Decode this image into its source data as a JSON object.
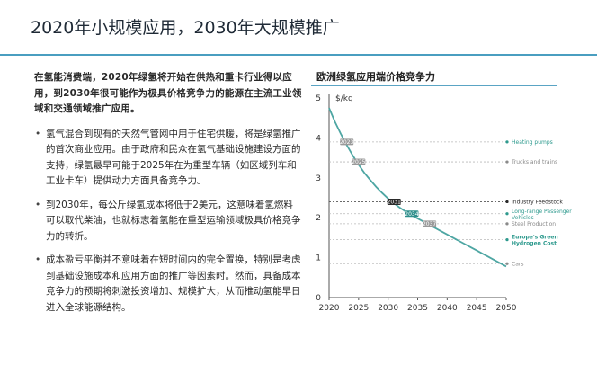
{
  "page": {
    "title": "2020年小规模应用，2030年大规模推广"
  },
  "text": {
    "lead": "在氢能消费端，2020年绿氢将开始在供热和重卡行业得以应用，到2030年很可能作为极具价格竞争力的能源在主流工业领域和交通领域推广应用。",
    "bullets": [
      "氢气混合到现有的天然气管网中用于住宅供暖，将是绿氢推广的首次商业应用。由于政府和民众在氢气基础设施建设方面的支持，绿氢最早可能于2025年在为重型车辆（如区域列车和工业卡车）提供动力方面具备竞争力。",
      "到2030年，每公斤绿氢成本将低于2美元，这意味着氢燃料可以取代柴油，也就标志着氢能在重型运输领域极具价格竞争力的转折。",
      "成本盈亏平衡并不意味着在短时间内的完全置换，特别是考虑到基础设施成本和应用方面的推广等因素时。然而，具备成本竞争力的预期将刺激投资增加、规模扩大，从而推动氢能早日进入全球能源结构。"
    ]
  },
  "colors": {
    "curve": "#4ea6a3",
    "accent": "#3a9cc0",
    "marker_dark": "#2a2a2a",
    "marker_teal": "#2f8f8c",
    "marker_gray": "#9a9a9a",
    "label_teal": "#2e9a8e",
    "label_gray": "#8a8a8a",
    "label_dark": "#2a2a2a"
  },
  "chart_data": {
    "type": "line",
    "title": "欧洲绿氢应用端价格竞争力",
    "ylabel": "$/kg",
    "xlabel": "",
    "xlim": [
      2020,
      2050
    ],
    "ylim": [
      0,
      5
    ],
    "x_ticks": [
      2020,
      2025,
      2030,
      2035,
      2040,
      2045,
      2050
    ],
    "y_ticks": [
      0,
      1,
      2,
      3,
      4,
      5
    ],
    "grid": false,
    "series": [
      {
        "x": [
          2020,
          2021,
          2022,
          2023,
          2024,
          2025,
          2026,
          2027,
          2028,
          2029,
          2030,
          2031,
          2032,
          2033,
          2034,
          2035,
          2036,
          2037,
          2038,
          2039,
          2040,
          2041,
          2042,
          2043,
          2044,
          2045,
          2046,
          2047,
          2048,
          2049,
          2050
        ],
        "values": [
          4.75,
          4.4,
          4.1,
          3.82,
          3.56,
          3.33,
          3.12,
          2.94,
          2.77,
          2.62,
          2.48,
          2.36,
          2.25,
          2.15,
          2.06,
          1.98,
          1.9,
          1.82,
          1.74,
          1.66,
          1.58,
          1.5,
          1.42,
          1.34,
          1.26,
          1.18,
          1.1,
          1.02,
          0.94,
          0.86,
          0.78
        ]
      }
    ],
    "thresholds": [
      {
        "label": "Heating pumps",
        "value": 3.9,
        "style": "teal",
        "marker_year": 2023,
        "marker_style": "gray"
      },
      {
        "label": "Trucks and trains",
        "value": 3.4,
        "style": "gray",
        "marker_year": 2025,
        "marker_style": "gray"
      },
      {
        "label": "Industry Feedstock",
        "value": 2.4,
        "style": "dark",
        "marker_year": 2031,
        "marker_style": "dark"
      },
      {
        "label": "Long-range Passenger Vehicles",
        "value": 2.1,
        "style": "teal",
        "marker_year": 2034,
        "marker_style": "teal"
      },
      {
        "label": "Steel Production",
        "value": 1.85,
        "style": "gray",
        "marker_year": 2037,
        "marker_style": "gray"
      },
      {
        "label": "Europe's Green Hydrogen Cost",
        "value": 1.45,
        "style": "teal-bold",
        "marker_year": null,
        "marker_style": null
      },
      {
        "label": "Cars",
        "value": 0.85,
        "style": "gray",
        "marker_year": null,
        "marker_style": null
      }
    ],
    "marker_labels": [
      "2023",
      "2025",
      "2031",
      "2034",
      "2037"
    ]
  }
}
